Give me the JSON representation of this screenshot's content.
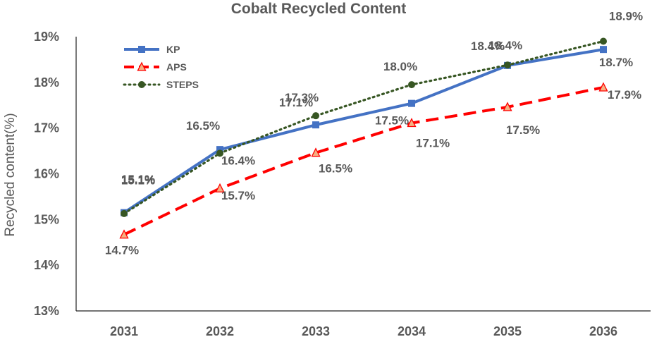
{
  "chart_data": {
    "type": "line",
    "title": "Cobalt Recycled Content",
    "xlabel": "",
    "ylabel": "Recycled content(%)",
    "categories": [
      "2031",
      "2032",
      "2033",
      "2034",
      "2035",
      "2036"
    ],
    "ylim": [
      13,
      19
    ],
    "yticks": [
      13,
      14,
      15,
      16,
      17,
      18,
      19
    ],
    "ytick_labels": [
      "13%",
      "14%",
      "15%",
      "16%",
      "17%",
      "18%",
      "19%"
    ],
    "legend_position": "top-left",
    "series": [
      {
        "name": "KP",
        "values": [
          15.15,
          16.53,
          17.07,
          17.54,
          18.37,
          18.72
        ],
        "labels": [
          "15.1%",
          "16.5%",
          "17.1%",
          "17.5%",
          "18.4%",
          "18.7%"
        ],
        "color": "#4472C4",
        "marker": "square",
        "line_style": "solid"
      },
      {
        "name": "APS",
        "values": [
          14.67,
          15.68,
          16.46,
          17.11,
          17.46,
          17.89
        ],
        "labels": [
          "14.7%",
          "15.7%",
          "16.5%",
          "17.1%",
          "17.5%",
          "17.9%"
        ],
        "color": "#FF0000",
        "marker": "triangle",
        "line_style": "dashed"
      },
      {
        "name": "STEPS",
        "values": [
          15.13,
          16.45,
          17.27,
          17.95,
          18.38,
          18.9
        ],
        "labels": [
          "15.1%",
          "16.4%",
          "17.3%",
          "18.0%",
          "18.4%",
          "18.9%"
        ],
        "color": "#375623",
        "marker": "circle",
        "line_style": "dotted"
      }
    ]
  }
}
